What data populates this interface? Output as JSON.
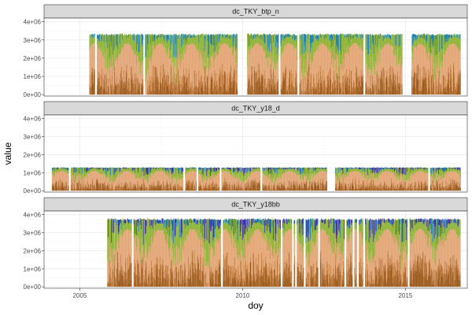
{
  "chart_data": {
    "type": "area",
    "xlabel": "doy",
    "ylabel": "value",
    "xlim": [
      2003.9,
      2016.9
    ],
    "ylim": [
      -80000,
      4200000
    ],
    "x_ticks": [
      2005,
      2010,
      2015
    ],
    "x_tick_labels": [
      "2005",
      "2010",
      "2015"
    ],
    "y_ticks": [
      0,
      1000000,
      2000000,
      3000000,
      4000000
    ],
    "y_tick_labels": [
      "0e+00",
      "1e+06",
      "2e+06",
      "3e+06",
      "4e+06"
    ],
    "grid": true,
    "colors": {
      "strip_bg": "#d9d9d9",
      "panel_border": "#333333",
      "grid_major": "#ebebeb",
      "grid_minor": "#f5f5f5",
      "ramp": [
        "#9c5a1a",
        "#c07a3e",
        "#e3a676",
        "#8fb437",
        "#1f7fae",
        "#3b2aa8"
      ]
    },
    "panels": [
      {
        "name": "dc_TKY_btp_n",
        "cap": 3350000,
        "segments": [
          [
            2005.3,
            2009.85
          ],
          [
            2010.15,
            2014.9
          ],
          [
            2015.2,
            2016.7
          ]
        ],
        "top_colors": [
          "#8fb437",
          "#1f7fae"
        ]
      },
      {
        "name": "dc_TKY_y18_d",
        "cap": 1300000,
        "segments": [
          [
            2004.15,
            2012.6
          ],
          [
            2012.85,
            2016.7
          ]
        ],
        "top_colors": [
          "#8fb437",
          "#1f7fae",
          "#3b2aa8"
        ]
      },
      {
        "name": "dc_TKY_y18bb",
        "cap": 3800000,
        "segments": [
          [
            2005.85,
            2016.7
          ]
        ],
        "top_colors": [
          "#8fb437",
          "#1f7fae",
          "#3b2aa8"
        ]
      }
    ]
  }
}
